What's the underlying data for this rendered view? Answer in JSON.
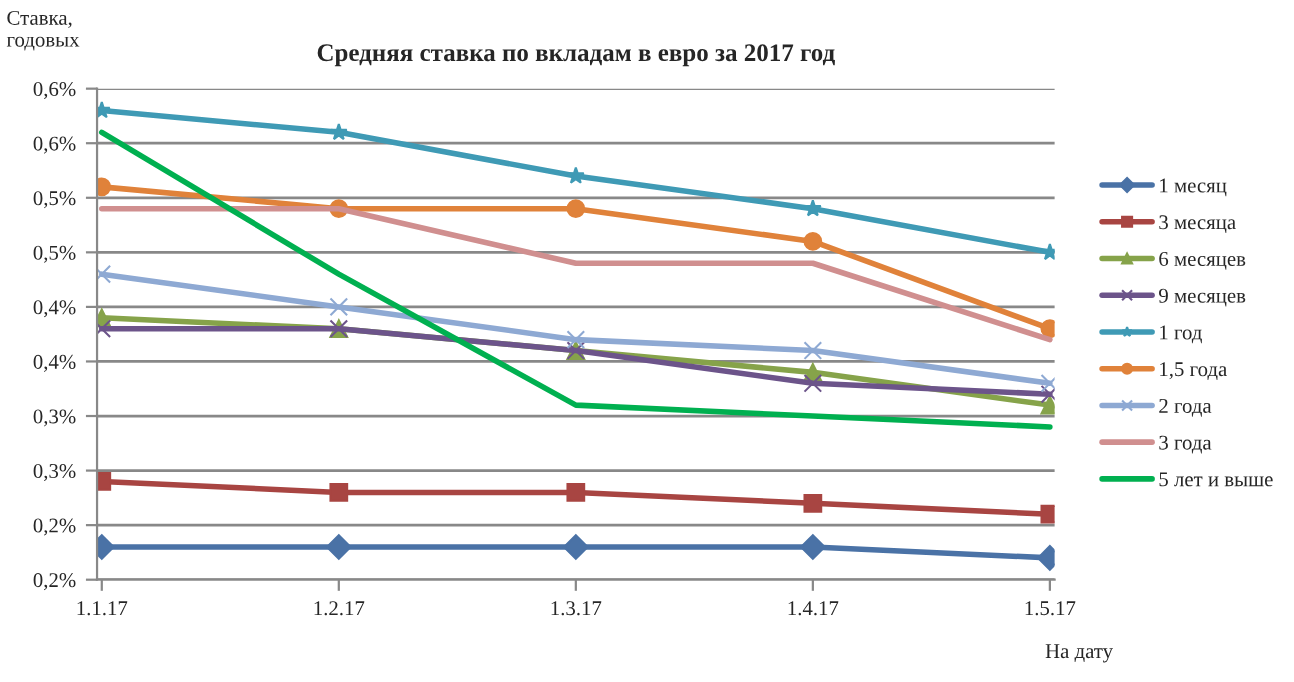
{
  "chart_data": {
    "type": "line",
    "title": "Средняя ставка по вкладам в евро за 2017 год",
    "ylabel": "Ставка,\nгодовых",
    "xlabel": "На дату",
    "categories": [
      "1.1.17",
      "1.2.17",
      "1.3.17",
      "1.4.17",
      "1.5.17"
    ],
    "ylim": [
      0.2,
      0.65
    ],
    "yticks": [
      {
        "value": 0.2,
        "label": "0,2%"
      },
      {
        "value": 0.25,
        "label": "0,2%"
      },
      {
        "value": 0.3,
        "label": "0,3%"
      },
      {
        "value": 0.35,
        "label": "0,3%"
      },
      {
        "value": 0.4,
        "label": "0,4%"
      },
      {
        "value": 0.45,
        "label": "0,4%"
      },
      {
        "value": 0.5,
        "label": "0,5%"
      },
      {
        "value": 0.55,
        "label": "0,5%"
      },
      {
        "value": 0.6,
        "label": "0,6%"
      },
      {
        "value": 0.65,
        "label": "0,6%"
      }
    ],
    "grid": "y",
    "legend": "right",
    "series": [
      {
        "name": "1 месяц",
        "color": "#4a72a6",
        "marker": "diamond",
        "values": [
          0.23,
          0.23,
          0.23,
          0.23,
          0.22
        ]
      },
      {
        "name": "3 месяца",
        "color": "#a84542",
        "marker": "square",
        "values": [
          0.29,
          0.28,
          0.28,
          0.27,
          0.26
        ]
      },
      {
        "name": "6 месяцев",
        "color": "#86a34a",
        "marker": "triangle",
        "values": [
          0.44,
          0.43,
          0.41,
          0.39,
          0.36
        ]
      },
      {
        "name": "9 месяцев",
        "color": "#6c548a",
        "marker": "cross",
        "values": [
          0.43,
          0.43,
          0.41,
          0.38,
          0.37
        ]
      },
      {
        "name": "1 год",
        "color": "#3f9ab5",
        "marker": "star",
        "values": [
          0.63,
          0.61,
          0.57,
          0.54,
          0.5
        ]
      },
      {
        "name": "1,5 года",
        "color": "#e0823a",
        "marker": "circle",
        "values": [
          0.56,
          0.54,
          0.54,
          0.51,
          0.43
        ]
      },
      {
        "name": "2 года",
        "color": "#8ea9d3",
        "marker": "cross",
        "values": [
          0.48,
          0.45,
          0.42,
          0.41,
          0.38
        ]
      },
      {
        "name": "3 года",
        "color": "#d08f8f",
        "marker": "none",
        "values": [
          0.54,
          0.54,
          0.49,
          0.49,
          0.42
        ]
      },
      {
        "name": "5 лет и выше",
        "color": "#00b050",
        "marker": "none",
        "values": [
          0.61,
          0.48,
          0.36,
          0.35,
          0.34
        ]
      }
    ]
  }
}
